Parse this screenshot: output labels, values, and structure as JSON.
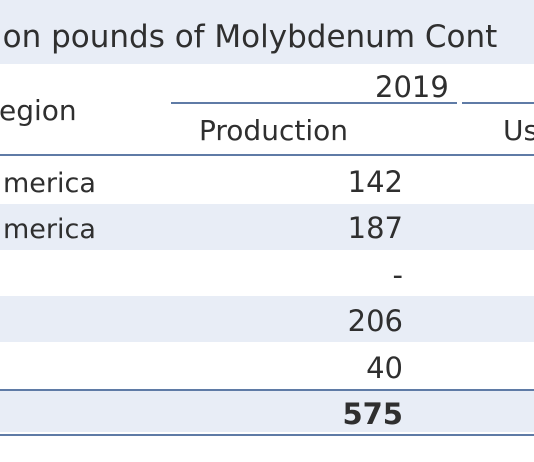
{
  "table": {
    "title": "ion pounds of Molybdenum Cont",
    "year": "2019",
    "region_header": "egion",
    "production_header": "Production",
    "use_header": "Us",
    "rows": [
      {
        "region": "merica",
        "production": "142"
      },
      {
        "region": "merica",
        "production": "187"
      },
      {
        "region": "",
        "production": "-"
      },
      {
        "region": "",
        "production": "206"
      },
      {
        "region": "",
        "production": "40"
      },
      {
        "region": "",
        "production": "575"
      }
    ]
  },
  "colors": {
    "band": "#e8edf6",
    "rule": "#5f7ba6",
    "text": "#2f2f2f"
  }
}
